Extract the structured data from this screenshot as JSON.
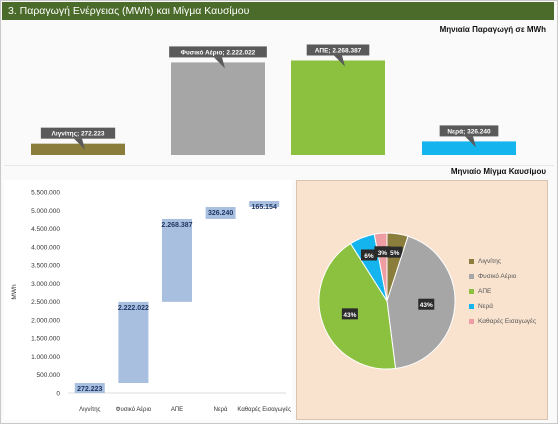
{
  "header": {
    "title": "3. Παραγωγή Ενέργειας (MWh) και Μίγμα Καυσίμου"
  },
  "colors": {
    "header_bg": "#4a6b2a",
    "lignite": "#8b7d3c",
    "gas": "#a6a6a6",
    "renewables": "#8cc13f",
    "water": "#14b4ee",
    "imports": "#ee9ea2",
    "waterfall_bar": "#a9bfe0"
  },
  "chart_data": [
    {
      "type": "bar",
      "title": "Μηνιαία Παραγωγή σε MWh",
      "categories": [
        "Λιγνίτης",
        "Φυσικό Αέριο",
        "ΑΠΕ",
        "Νερά"
      ],
      "values": [
        272223,
        2222022,
        2268387,
        326240
      ],
      "data_labels": [
        "Λιγνίτης; 272.223",
        "Φυσικό Αέριο; 2.222.022",
        "ΑΠΕ; 2.268.387",
        "Νερά; 326.240"
      ],
      "ylim": [
        0,
        2400000
      ]
    },
    {
      "type": "bar",
      "subtype": "waterfall",
      "categories": [
        "Λιγνίτης",
        "Φυσικό Αέριο",
        "ΑΠΕ",
        "Νερά",
        "Καθαρές Εισαγωγές"
      ],
      "values": [
        272223,
        2222022,
        2268387,
        326240,
        165154
      ],
      "data_labels": [
        "272.223",
        "2.222.022",
        "2.268.387",
        "326.240",
        "165.154"
      ],
      "ylabel": "MWh",
      "ylim": [
        0,
        5500000
      ],
      "yticks": [
        0,
        500000,
        1000000,
        1500000,
        2000000,
        2500000,
        3000000,
        3500000,
        4000000,
        4500000,
        5000000,
        5500000
      ],
      "ytick_labels": [
        "0",
        "500.000",
        "1.000.000",
        "1.500.000",
        "2.000.000",
        "2.500.000",
        "3.000.000",
        "3.500.000",
        "4.000.000",
        "4.500.000",
        "5.000.000",
        "5.500.000"
      ]
    },
    {
      "type": "pie",
      "title": "Μηνιαίο Μίγμα Καυσίμου",
      "categories": [
        "Λιγνίτης",
        "Φυσικό Αέριο",
        "ΑΠΕ",
        "Νερά",
        "Καθαρές Εισαγωγές"
      ],
      "values": [
        5,
        43,
        43,
        6,
        3
      ],
      "data_labels": [
        "5%",
        "43%",
        "43%",
        "6%",
        "3%"
      ],
      "legend": "right"
    }
  ]
}
